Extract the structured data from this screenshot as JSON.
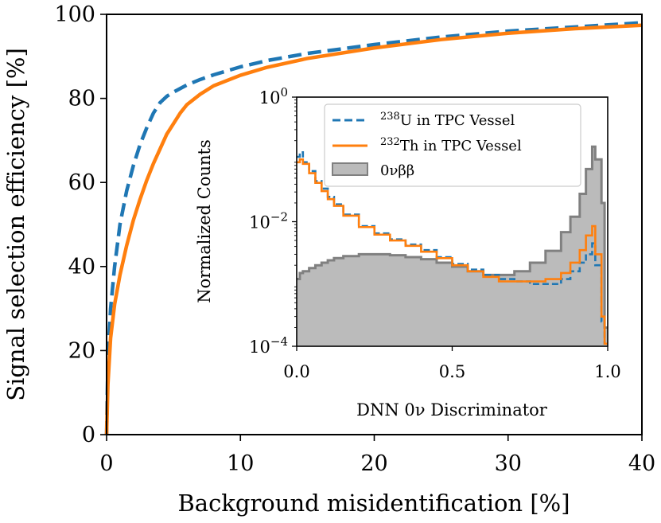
{
  "chart_data": [
    {
      "id": "main",
      "type": "line",
      "title": "",
      "xlabel": "Background misidentification [%]",
      "ylabel": "Signal selection efficiency [%]",
      "xlim": [
        0,
        40
      ],
      "ylim": [
        0,
        100
      ],
      "xticks": [
        0,
        10,
        20,
        30,
        40
      ],
      "yticks": [
        0,
        20,
        40,
        60,
        80,
        100
      ],
      "xtick_labels": [
        "0",
        "10",
        "20",
        "30",
        "40"
      ],
      "ytick_labels": [
        "0",
        "20",
        "40",
        "60",
        "80",
        "100"
      ],
      "grid": false,
      "series": [
        {
          "name": "238U in TPC Vessel",
          "color": "#1f77b4",
          "style": "dashed",
          "x": [
            0,
            0.1,
            0.3,
            0.6,
            1.0,
            1.5,
            2.0,
            2.5,
            3.0,
            3.5,
            4.0,
            4.5,
            5.0,
            6.0,
            7.0,
            8.0,
            10.0,
            12.0,
            15.0,
            20.0,
            25.0,
            30.0,
            35.0,
            40.0
          ],
          "y": [
            0,
            18,
            30,
            40,
            50,
            58,
            64,
            69,
            73,
            76.5,
            79,
            80.5,
            81.5,
            83.2,
            84.5,
            85.6,
            87.5,
            89.0,
            90.7,
            92.8,
            94.6,
            96.0,
            97.0,
            98.0
          ]
        },
        {
          "name": "232Th in TPC Vessel",
          "color": "#ff7f0e",
          "style": "solid",
          "x": [
            0,
            0.1,
            0.3,
            0.6,
            1.0,
            1.5,
            2.0,
            2.5,
            3.0,
            3.5,
            4.0,
            4.5,
            5.0,
            5.5,
            6.0,
            7.0,
            8.0,
            10.0,
            12.0,
            15.0,
            20.0,
            25.0,
            30.0,
            35.0,
            40.0
          ],
          "y": [
            0,
            12,
            23,
            31,
            38,
            45,
            51,
            56,
            60.5,
            64.5,
            68,
            71.5,
            74,
            76.5,
            78.5,
            81,
            83,
            85.5,
            87.4,
            89.5,
            92.0,
            94.0,
            95.5,
            96.6,
            97.4
          ]
        }
      ]
    },
    {
      "id": "inset",
      "type": "histogram",
      "title": "",
      "xlabel": "DNN 0ν Discriminator",
      "ylabel": "Normalized Counts",
      "xlim": [
        0,
        1.0
      ],
      "ylim": [
        0.0001,
        1
      ],
      "yscale": "log",
      "xticks": [
        0,
        0.5,
        1.0
      ],
      "xtick_labels": [
        "0.0",
        "0.5",
        "1.0"
      ],
      "yticks": [
        0.0001,
        0.01,
        1
      ],
      "ytick_labels": [
        {
          "base": "10",
          "exp": "−4"
        },
        {
          "base": "10",
          "exp": "−2"
        },
        {
          "base": "10",
          "exp": "0"
        }
      ],
      "legend_position": "top-right",
      "legend": [
        {
          "pre": "",
          "sup": "238",
          "post": "U in TPC Vessel"
        },
        {
          "pre": "",
          "sup": "232",
          "post": "Th in TPC Vessel"
        },
        {
          "pre": "0νββ",
          "sup": "",
          "post": ""
        }
      ],
      "bin_edges_x": [
        0.0,
        0.01,
        0.02,
        0.04,
        0.06,
        0.08,
        0.1,
        0.12,
        0.15,
        0.2,
        0.25,
        0.3,
        0.35,
        0.4,
        0.45,
        0.5,
        0.55,
        0.6,
        0.65,
        0.7,
        0.75,
        0.8,
        0.85,
        0.88,
        0.91,
        0.93,
        0.95,
        0.96,
        0.98,
        0.99,
        1.0
      ],
      "series": [
        {
          "name": "0νββ",
          "color": "#bbbbbb",
          "edge_color": "#808080",
          "style": "filled-step",
          "values": [
            0.0012,
            0.0015,
            0.0016,
            0.0018,
            0.002,
            0.0022,
            0.0024,
            0.0026,
            0.0028,
            0.003,
            0.003,
            0.0029,
            0.0027,
            0.0025,
            0.0022,
            0.0019,
            0.0016,
            0.0014,
            0.0014,
            0.0016,
            0.0022,
            0.0034,
            0.0068,
            0.012,
            0.028,
            0.07,
            0.16,
            0.1,
            0.02,
            0.0002
          ]
        },
        {
          "name": "238U in TPC Vessel",
          "color": "#1f77b4",
          "style": "dashed-step",
          "values": [
            0.11,
            0.13,
            0.09,
            0.065,
            0.045,
            0.034,
            0.025,
            0.019,
            0.013,
            0.0085,
            0.0065,
            0.0052,
            0.0043,
            0.0035,
            0.0027,
            0.0021,
            0.0017,
            0.0014,
            0.0012,
            0.0011,
            0.001,
            0.001,
            0.0012,
            0.0016,
            0.0022,
            0.003,
            0.0045,
            0.002,
            0.00025,
            0.00011
          ]
        },
        {
          "name": "232Th in TPC Vessel",
          "color": "#ff7f0e",
          "style": "solid-step",
          "values": [
            0.09,
            0.1,
            0.085,
            0.06,
            0.042,
            0.031,
            0.023,
            0.018,
            0.0125,
            0.0082,
            0.0062,
            0.005,
            0.0041,
            0.0033,
            0.0026,
            0.002,
            0.0016,
            0.0013,
            0.0011,
            0.0011,
            0.0011,
            0.0012,
            0.0015,
            0.0022,
            0.0035,
            0.006,
            0.0085,
            0.003,
            0.0003,
            0.00011
          ]
        }
      ]
    }
  ]
}
